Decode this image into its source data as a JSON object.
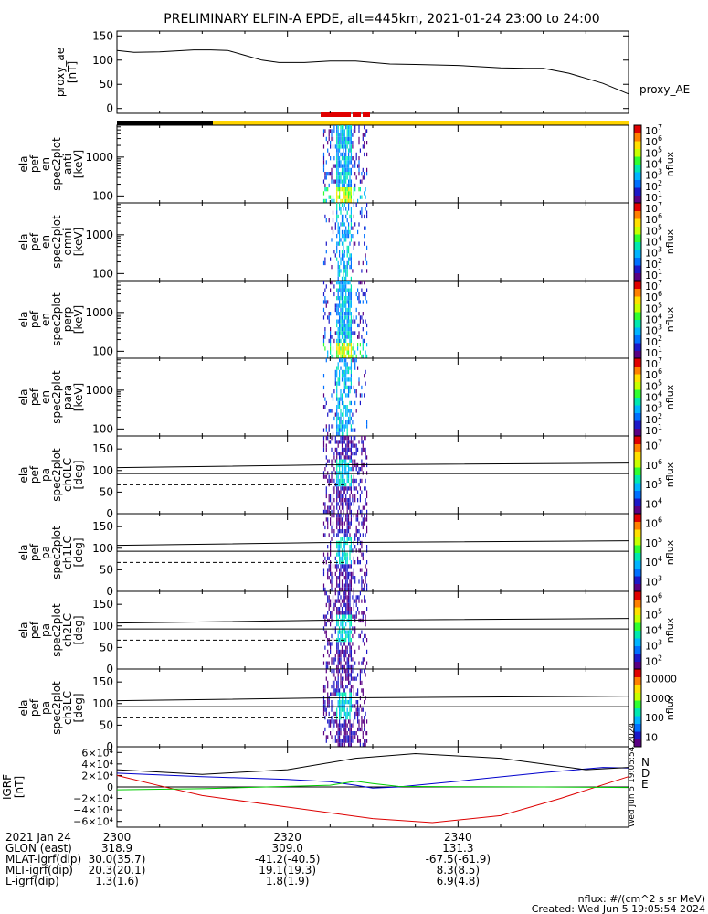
{
  "title": "PRELIMINARY ELFIN-A EPDE, alt=445km, 2021-01-24 23:00 to 24:00",
  "chart_data": [
    {
      "type": "line",
      "panel": "proxy_ae",
      "ylabel": [
        "proxy_ae",
        "[nT]"
      ],
      "legend": "proxy_AE",
      "ylim": [
        -10,
        160
      ],
      "yticks": [
        "150",
        "100",
        "50",
        "0"
      ],
      "x_minutes": [
        0,
        2,
        5,
        9,
        11,
        13,
        15,
        17,
        19,
        22,
        25,
        28,
        32,
        35,
        40,
        45,
        48,
        50,
        53,
        57,
        60
      ],
      "values": [
        120,
        116,
        117,
        121,
        121,
        120,
        110,
        100,
        95,
        95,
        98,
        98,
        92,
        91,
        89,
        84,
        83,
        83,
        73,
        52,
        30
      ],
      "color": "#000000"
    },
    {
      "type": "heatmap",
      "panels": [
        {
          "ylabel": [
            "ela",
            "pef",
            "en",
            "spec2plot",
            "anti",
            "[keV]"
          ],
          "yticks": [
            "1000",
            "100"
          ],
          "colorbar": [
            "10^1",
            "10^2",
            "10^3",
            "10^4",
            "10^5",
            "10^6",
            "10^7"
          ],
          "zlabel": "nflux"
        },
        {
          "ylabel": [
            "ela",
            "pef",
            "en",
            "spec2plot",
            "omni",
            "[keV]"
          ],
          "yticks": [
            "1000",
            "100"
          ],
          "colorbar": [
            "10^1",
            "10^2",
            "10^3",
            "10^4",
            "10^5",
            "10^6",
            "10^7"
          ],
          "zlabel": "nflux"
        },
        {
          "ylabel": [
            "ela",
            "pef",
            "en",
            "spec2plot",
            "perp",
            "[keV]"
          ],
          "yticks": [
            "1000",
            "100"
          ],
          "colorbar": [
            "10^1",
            "10^2",
            "10^3",
            "10^4",
            "10^5",
            "10^6",
            "10^7"
          ],
          "zlabel": "nflux"
        },
        {
          "ylabel": [
            "ela",
            "pef",
            "en",
            "spec2plot",
            "para",
            "[keV]"
          ],
          "yticks": [
            "1000",
            "100"
          ],
          "colorbar": [
            "10^1",
            "10^2",
            "10^3",
            "10^4",
            "10^5",
            "10^6",
            "10^7"
          ],
          "zlabel": "nflux"
        },
        {
          "ylabel": [
            "ela",
            "pef",
            "pa",
            "spec2plot",
            "ch0LC",
            "[deg]"
          ],
          "yticks": [
            "150",
            "100",
            "50",
            "0"
          ],
          "colorbar": [
            "10^4",
            "10^5",
            "10^6",
            "10^7"
          ],
          "zlabel": "nflux"
        },
        {
          "ylabel": [
            "ela",
            "pef",
            "pa",
            "spec2plot",
            "ch1LC",
            "[deg]"
          ],
          "yticks": [
            "150",
            "100",
            "50",
            "0"
          ],
          "colorbar": [
            "10^3",
            "10^4",
            "10^5",
            "10^6"
          ],
          "zlabel": "nflux"
        },
        {
          "ylabel": [
            "ela",
            "pef",
            "pa",
            "spec2plot",
            "ch2LC",
            "[deg]"
          ],
          "yticks": [
            "150",
            "100",
            "50",
            "0"
          ],
          "colorbar": [
            "10^2",
            "10^3",
            "10^4",
            "10^5",
            "10^6"
          ],
          "zlabel": "nflux"
        },
        {
          "ylabel": [
            "ela",
            "pef",
            "pa",
            "spec2plot",
            "ch3LC",
            "[deg]"
          ],
          "yticks": [
            "150",
            "100",
            "50",
            "0"
          ],
          "colorbar": [
            "10",
            "100",
            "1000",
            "10000"
          ],
          "zlabel": "nflux"
        }
      ],
      "data_window_minutes": [
        24.2,
        29.4
      ]
    },
    {
      "type": "line",
      "panel": "IGRF",
      "ylabel": [
        "IGRF",
        "[nT]"
      ],
      "ylim": [
        -70000,
        70000
      ],
      "yticks": [
        "6×10⁴",
        "4×10⁴",
        "2×10⁴",
        "0",
        "−2×10⁴",
        "−4×10⁴",
        "−6×10⁴"
      ],
      "legend": [
        "N",
        "D",
        "E"
      ],
      "series": [
        {
          "name": "N",
          "color": "#0000cc",
          "x_minutes": [
            0,
            10,
            20,
            25,
            28,
            30,
            33,
            40,
            50,
            57,
            60
          ],
          "values": [
            24000,
            18000,
            13000,
            9000,
            3000,
            -2000,
            0,
            10000,
            25000,
            34000,
            33000
          ]
        },
        {
          "name": "D",
          "color": "#dd0000",
          "x_minutes": [
            0,
            5,
            10,
            20,
            30,
            37,
            45,
            52,
            60
          ],
          "values": [
            20000,
            2000,
            -15000,
            -35000,
            -55000,
            -62000,
            -50000,
            -20000,
            18000
          ]
        },
        {
          "name": "E",
          "color": "#00cc00",
          "x_minutes": [
            0,
            10,
            20,
            25,
            28,
            30,
            33,
            40,
            50,
            60
          ],
          "values": [
            -5000,
            -3000,
            1000,
            3000,
            10000,
            6000,
            1000,
            500,
            0,
            -1000
          ]
        },
        {
          "name": "",
          "color": "#000000",
          "x_minutes": [
            0,
            10,
            20,
            28,
            35,
            45,
            55,
            60
          ],
          "values": [
            30000,
            22000,
            30000,
            50000,
            58000,
            50000,
            30000,
            34000
          ]
        }
      ]
    }
  ],
  "xaxis": {
    "rows": [
      {
        "label": "2021 Jan 24",
        "values": [
          "2300",
          "2320",
          "2340"
        ]
      },
      {
        "label": "GLON (east)",
        "values": [
          "318.9",
          "309.0",
          "131.3"
        ]
      },
      {
        "label": "MLAT-igrf(dip)",
        "values": [
          "30.0(35.7)",
          "-41.2(-40.5)",
          "-67.5(-61.9)"
        ]
      },
      {
        "label": "MLT-igrf(dip)",
        "values": [
          "20.3(20.1)",
          "19.1(19.3)",
          "8.3(8.5)"
        ]
      },
      {
        "label": "L-igrf(dip)",
        "values": [
          "1.3(1.6)",
          "1.8(1.9)",
          "6.9(4.8)"
        ]
      }
    ]
  },
  "footer": {
    "units": "nflux: #/(cm^2 s sr MeV)",
    "created": "Created: Wed Jun  5 19:05:54 2024",
    "side_stamp": "Wed Jun  5 19:05:54 2024"
  }
}
